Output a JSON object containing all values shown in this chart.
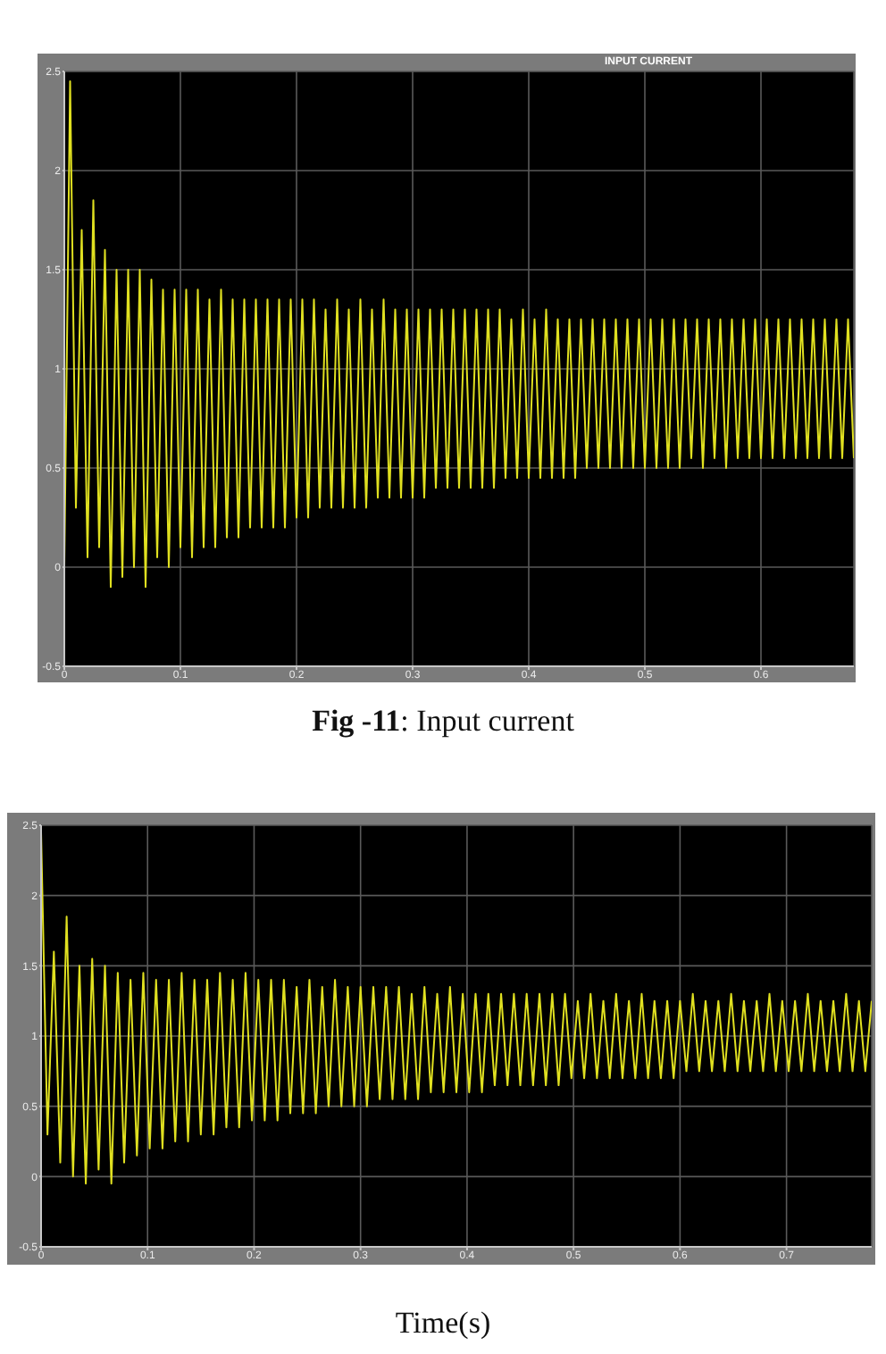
{
  "chart_data": [
    {
      "type": "line",
      "title": "INPUT CURRENT",
      "color": "#e0e020",
      "grid": true,
      "xlim": [
        0,
        0.68
      ],
      "ylim": [
        -0.5,
        2.5
      ],
      "xticks": [
        0,
        0.1,
        0.2,
        0.3,
        0.4,
        0.5,
        0.6
      ],
      "yticks": [
        -0.5,
        0,
        0.5,
        1,
        1.5,
        2,
        2.5
      ],
      "annotations": [
        "Fig -11: Input current"
      ],
      "x": [
        0,
        0.005,
        0.01,
        0.015,
        0.02,
        0.025,
        0.03,
        0.035,
        0.04,
        0.045,
        0.05,
        0.055,
        0.06,
        0.065,
        0.07,
        0.075,
        0.08,
        0.085,
        0.09,
        0.095,
        0.1,
        0.105,
        0.11,
        0.115,
        0.12,
        0.125,
        0.13,
        0.135,
        0.14,
        0.145,
        0.15,
        0.155,
        0.16,
        0.165,
        0.17,
        0.175,
        0.18,
        0.185,
        0.19,
        0.195,
        0.2,
        0.205,
        0.21,
        0.215,
        0.22,
        0.225,
        0.23,
        0.235,
        0.24,
        0.245,
        0.25,
        0.255,
        0.26,
        0.265,
        0.27,
        0.275,
        0.28,
        0.285,
        0.29,
        0.295,
        0.3,
        0.305,
        0.31,
        0.315,
        0.32,
        0.325,
        0.33,
        0.335,
        0.34,
        0.345,
        0.35,
        0.355,
        0.36,
        0.365,
        0.37,
        0.375,
        0.38,
        0.385,
        0.39,
        0.395,
        0.4,
        0.405,
        0.41,
        0.415,
        0.42,
        0.425,
        0.43,
        0.435,
        0.44,
        0.445,
        0.45,
        0.455,
        0.46,
        0.465,
        0.47,
        0.475,
        0.48,
        0.485,
        0.49,
        0.495,
        0.5,
        0.505,
        0.51,
        0.515,
        0.52,
        0.525,
        0.53,
        0.535,
        0.54,
        0.545,
        0.55,
        0.555,
        0.56,
        0.565,
        0.57,
        0.575,
        0.58,
        0.585,
        0.59,
        0.595,
        0.6,
        0.605,
        0.61,
        0.615,
        0.62,
        0.625,
        0.63,
        0.635,
        0.64,
        0.645,
        0.65,
        0.655,
        0.66,
        0.665,
        0.67,
        0.675,
        0.68
      ],
      "values": [
        0,
        2.45,
        0.3,
        1.7,
        0.05,
        1.85,
        0.1,
        1.6,
        -0.1,
        1.5,
        -0.05,
        1.5,
        0,
        1.5,
        -0.1,
        1.45,
        0.05,
        1.4,
        0,
        1.4,
        0.1,
        1.4,
        0.05,
        1.4,
        0.1,
        1.35,
        0.1,
        1.4,
        0.15,
        1.35,
        0.15,
        1.35,
        0.2,
        1.35,
        0.2,
        1.35,
        0.2,
        1.35,
        0.2,
        1.35,
        0.25,
        1.35,
        0.25,
        1.35,
        0.3,
        1.3,
        0.3,
        1.35,
        0.3,
        1.3,
        0.3,
        1.35,
        0.3,
        1.3,
        0.35,
        1.35,
        0.35,
        1.3,
        0.35,
        1.3,
        0.35,
        1.3,
        0.35,
        1.3,
        0.4,
        1.3,
        0.4,
        1.3,
        0.4,
        1.3,
        0.4,
        1.3,
        0.4,
        1.3,
        0.4,
        1.3,
        0.45,
        1.25,
        0.45,
        1.3,
        0.45,
        1.25,
        0.45,
        1.3,
        0.45,
        1.25,
        0.45,
        1.25,
        0.45,
        1.25,
        0.5,
        1.25,
        0.5,
        1.25,
        0.5,
        1.25,
        0.5,
        1.25,
        0.5,
        1.25,
        0.5,
        1.25,
        0.5,
        1.25,
        0.5,
        1.25,
        0.5,
        1.25,
        0.55,
        1.25,
        0.5,
        1.25,
        0.55,
        1.25,
        0.5,
        1.25,
        0.55,
        1.25,
        0.55,
        1.25,
        0.55,
        1.25,
        0.55,
        1.25,
        0.55,
        1.25,
        0.55,
        1.25,
        0.55,
        1.25,
        0.55,
        1.25,
        0.55,
        1.25,
        0.55,
        1.25,
        0.55
      ]
    },
    {
      "type": "line",
      "xlabel": "Time(s)",
      "color": "#e0e020",
      "grid": true,
      "xlim": [
        0,
        0.78
      ],
      "ylim": [
        -0.5,
        2.5
      ],
      "xticks": [
        0,
        0.1,
        0.2,
        0.3,
        0.4,
        0.5,
        0.6,
        0.7
      ],
      "yticks": [
        -0.5,
        0,
        0.5,
        1,
        1.5,
        2,
        2.5
      ],
      "x": [
        0,
        0.006,
        0.012,
        0.018,
        0.024,
        0.03,
        0.036,
        0.042,
        0.048,
        0.054,
        0.06,
        0.066,
        0.072,
        0.078,
        0.084,
        0.09,
        0.096,
        0.102,
        0.108,
        0.114,
        0.12,
        0.126,
        0.132,
        0.138,
        0.144,
        0.15,
        0.156,
        0.162,
        0.168,
        0.174,
        0.18,
        0.186,
        0.192,
        0.198,
        0.204,
        0.21,
        0.216,
        0.222,
        0.228,
        0.234,
        0.24,
        0.246,
        0.252,
        0.258,
        0.264,
        0.27,
        0.276,
        0.282,
        0.288,
        0.294,
        0.3,
        0.306,
        0.312,
        0.318,
        0.324,
        0.33,
        0.336,
        0.342,
        0.348,
        0.354,
        0.36,
        0.366,
        0.372,
        0.378,
        0.384,
        0.39,
        0.396,
        0.402,
        0.408,
        0.414,
        0.42,
        0.426,
        0.432,
        0.438,
        0.444,
        0.45,
        0.456,
        0.462,
        0.468,
        0.474,
        0.48,
        0.486,
        0.492,
        0.498,
        0.504,
        0.51,
        0.516,
        0.522,
        0.528,
        0.534,
        0.54,
        0.546,
        0.552,
        0.558,
        0.564,
        0.57,
        0.576,
        0.582,
        0.588,
        0.594,
        0.6,
        0.606,
        0.612,
        0.618,
        0.624,
        0.63,
        0.636,
        0.642,
        0.648,
        0.654,
        0.66,
        0.666,
        0.672,
        0.678,
        0.684,
        0.69,
        0.696,
        0.702,
        0.708,
        0.714,
        0.72,
        0.726,
        0.732,
        0.738,
        0.744,
        0.75,
        0.756,
        0.762,
        0.768,
        0.774,
        0.78
      ],
      "values": [
        2.45,
        0.3,
        1.6,
        0.1,
        1.85,
        0,
        1.5,
        -0.05,
        1.55,
        0.05,
        1.5,
        -0.05,
        1.45,
        0.1,
        1.4,
        0.15,
        1.45,
        0.2,
        1.4,
        0.2,
        1.4,
        0.25,
        1.45,
        0.25,
        1.4,
        0.3,
        1.4,
        0.3,
        1.45,
        0.35,
        1.4,
        0.35,
        1.45,
        0.4,
        1.4,
        0.4,
        1.4,
        0.4,
        1.4,
        0.45,
        1.35,
        0.45,
        1.4,
        0.45,
        1.35,
        0.5,
        1.4,
        0.5,
        1.35,
        0.5,
        1.35,
        0.5,
        1.35,
        0.55,
        1.35,
        0.55,
        1.35,
        0.55,
        1.3,
        0.55,
        1.35,
        0.6,
        1.3,
        0.6,
        1.35,
        0.6,
        1.3,
        0.6,
        1.3,
        0.6,
        1.3,
        0.65,
        1.3,
        0.65,
        1.3,
        0.65,
        1.3,
        0.65,
        1.3,
        0.65,
        1.3,
        0.65,
        1.3,
        0.7,
        1.25,
        0.7,
        1.3,
        0.7,
        1.25,
        0.7,
        1.3,
        0.7,
        1.25,
        0.7,
        1.3,
        0.7,
        1.25,
        0.7,
        1.25,
        0.7,
        1.25,
        0.75,
        1.3,
        0.75,
        1.25,
        0.75,
        1.25,
        0.75,
        1.3,
        0.75,
        1.25,
        0.75,
        1.25,
        0.75,
        1.3,
        0.75,
        1.25,
        0.75,
        1.25,
        0.75,
        1.3,
        0.75,
        1.25,
        0.75,
        1.25,
        0.75,
        1.3,
        0.75,
        1.25,
        0.75,
        1.25
      ]
    }
  ]
}
